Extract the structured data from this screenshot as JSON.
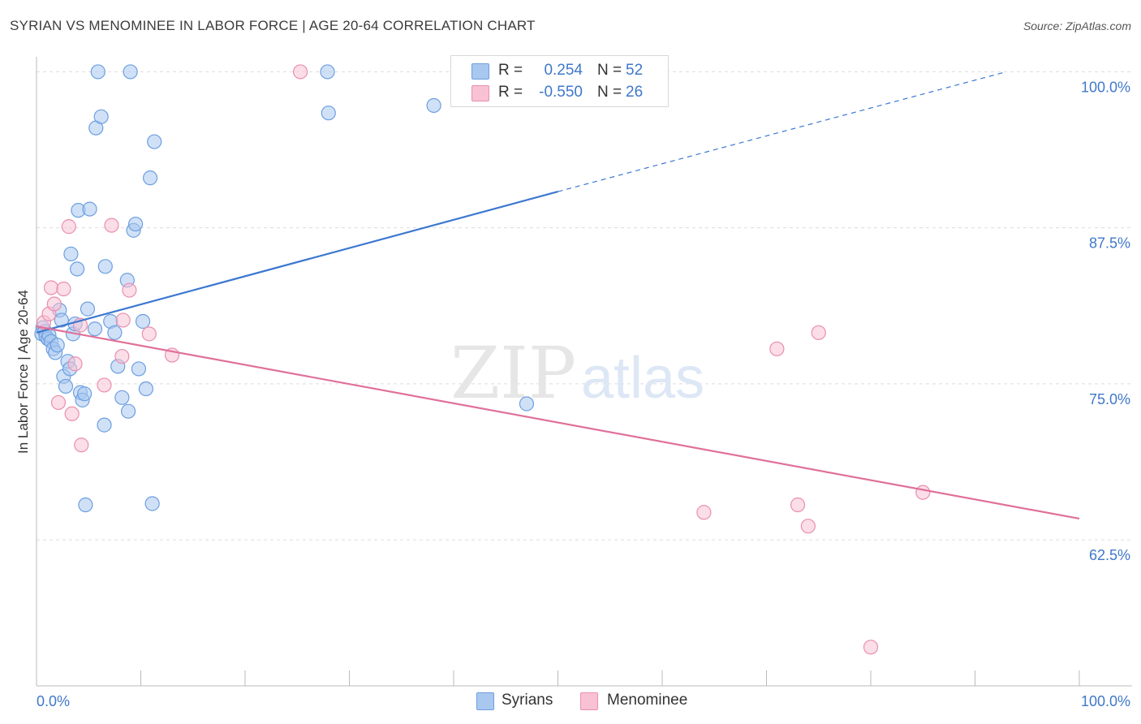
{
  "title": "SYRIAN VS MENOMINEE IN LABOR FORCE | AGE 20-64 CORRELATION CHART",
  "source": "Source: ZipAtlas.com",
  "watermark": {
    "zip": "ZIP",
    "atlas": "atlas"
  },
  "colors": {
    "syrians_fill": "#a9c8f0",
    "syrians_stroke": "#6d9fe0",
    "syrians_line": "#3c78d0",
    "menominee_fill": "#f8c2d4",
    "menominee_stroke": "#e98fb0",
    "menominee_line": "#e0709a",
    "axis_label": "#3f78c9",
    "grid": "#dddddd"
  },
  "legend": {
    "rows": [
      {
        "r_label": "R =",
        "r_value": "0.254",
        "n_label": "N =",
        "n_value": "52"
      },
      {
        "r_label": "R =",
        "r_value": "-0.550",
        "n_label": "N =",
        "n_value": "26"
      }
    ]
  },
  "bottom_legend": [
    "Syrians",
    "Menominee"
  ],
  "chart_data": {
    "type": "scatter",
    "title": "SYRIAN VS MENOMINEE IN LABOR FORCE | AGE 20-64 CORRELATION CHART",
    "xlabel": "",
    "ylabel": "In Labor Force | Age 20-64",
    "xlim": [
      0,
      100
    ],
    "ylim": [
      50.8,
      101.2
    ],
    "x_tick_labels": [
      "0.0%",
      "100.0%"
    ],
    "y_ticks": [
      100.0,
      87.5,
      75.0,
      62.5
    ],
    "y_tick_labels": [
      "100.0%",
      "87.5%",
      "75.0%",
      "62.5%"
    ],
    "grid": true,
    "series": [
      {
        "name": "Syrians",
        "points": [
          [
            0.6,
            79.5
          ],
          [
            0.5,
            79.0
          ],
          [
            0.8,
            79.2
          ],
          [
            0.9,
            78.8
          ],
          [
            1.1,
            78.6
          ],
          [
            1.2,
            78.9
          ],
          [
            1.4,
            78.4
          ],
          [
            1.6,
            77.8
          ],
          [
            1.8,
            77.5
          ],
          [
            2.0,
            78.1
          ],
          [
            2.2,
            80.9
          ],
          [
            2.4,
            80.1
          ],
          [
            2.6,
            75.6
          ],
          [
            2.8,
            74.8
          ],
          [
            3.0,
            76.8
          ],
          [
            3.2,
            76.2
          ],
          [
            3.3,
            85.4
          ],
          [
            3.5,
            79.0
          ],
          [
            3.7,
            79.8
          ],
          [
            3.9,
            84.2
          ],
          [
            4.0,
            88.9
          ],
          [
            4.2,
            74.3
          ],
          [
            4.4,
            73.7
          ],
          [
            4.6,
            74.2
          ],
          [
            4.7,
            65.3
          ],
          [
            4.9,
            81.0
          ],
          [
            5.1,
            89.0
          ],
          [
            5.6,
            79.4
          ],
          [
            5.7,
            95.5
          ],
          [
            5.9,
            100.0
          ],
          [
            6.2,
            96.4
          ],
          [
            6.5,
            71.7
          ],
          [
            6.6,
            84.4
          ],
          [
            7.1,
            80.0
          ],
          [
            7.5,
            79.1
          ],
          [
            7.8,
            76.4
          ],
          [
            8.2,
            73.9
          ],
          [
            8.7,
            83.3
          ],
          [
            8.8,
            72.8
          ],
          [
            9.0,
            100.0
          ],
          [
            9.3,
            87.3
          ],
          [
            9.5,
            87.8
          ],
          [
            9.8,
            76.2
          ],
          [
            10.2,
            80.0
          ],
          [
            10.5,
            74.6
          ],
          [
            10.9,
            91.5
          ],
          [
            11.1,
            65.4
          ],
          [
            11.3,
            94.4
          ],
          [
            27.9,
            100.0
          ],
          [
            28.0,
            96.7
          ],
          [
            38.1,
            97.3
          ],
          [
            47.0,
            73.4
          ]
        ]
      },
      {
        "name": "Menominee",
        "points": [
          [
            0.7,
            79.9
          ],
          [
            1.2,
            80.6
          ],
          [
            1.4,
            82.7
          ],
          [
            1.7,
            81.4
          ],
          [
            2.1,
            73.5
          ],
          [
            2.6,
            82.6
          ],
          [
            3.1,
            87.6
          ],
          [
            3.4,
            72.6
          ],
          [
            3.7,
            76.6
          ],
          [
            4.2,
            79.7
          ],
          [
            4.3,
            70.1
          ],
          [
            6.5,
            74.9
          ],
          [
            7.2,
            87.7
          ],
          [
            8.2,
            77.2
          ],
          [
            8.3,
            80.1
          ],
          [
            8.9,
            82.5
          ],
          [
            10.8,
            79.0
          ],
          [
            13.0,
            77.3
          ],
          [
            25.3,
            100.0
          ],
          [
            64.0,
            64.7
          ],
          [
            71.0,
            77.8
          ],
          [
            73.0,
            65.3
          ],
          [
            74.0,
            63.6
          ],
          [
            75.0,
            79.1
          ],
          [
            80.0,
            53.9
          ],
          [
            85.0,
            66.3
          ]
        ]
      }
    ],
    "trend_lines": [
      {
        "series": "Syrians",
        "x": [
          0,
          50
        ],
        "y": [
          79.1,
          90.4
        ],
        "dashed_extension": {
          "x": [
            50,
            93
          ],
          "y": [
            90.4,
            100.0
          ]
        }
      },
      {
        "series": "Menominee",
        "x": [
          0,
          100
        ],
        "y": [
          79.6,
          64.2
        ]
      }
    ]
  }
}
